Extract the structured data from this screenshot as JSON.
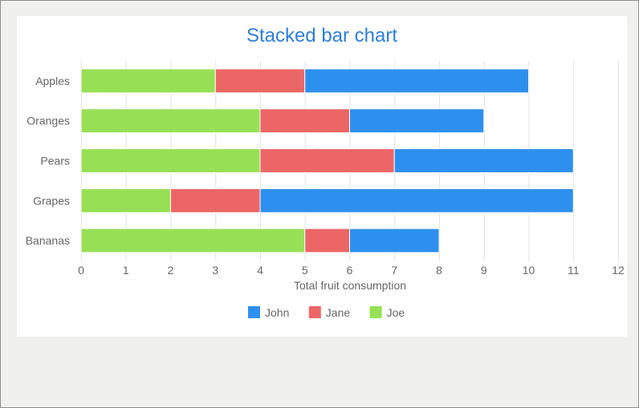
{
  "chart_data": {
    "type": "bar",
    "orientation": "horizontal",
    "stacked": true,
    "title": "Stacked bar chart",
    "xlabel": "Total fruit consumption",
    "ylabel": "",
    "xlim": [
      0,
      12
    ],
    "xticks": [
      0,
      1,
      2,
      3,
      4,
      5,
      6,
      7,
      8,
      9,
      10,
      11,
      12
    ],
    "categories": [
      "Apples",
      "Oranges",
      "Pears",
      "Grapes",
      "Bananas"
    ],
    "series": [
      {
        "name": "Joe",
        "color": "#96e055",
        "values": [
          3,
          4,
          4,
          2,
          5
        ]
      },
      {
        "name": "Jane",
        "color": "#ec6666",
        "values": [
          2,
          2,
          3,
          2,
          1
        ]
      },
      {
        "name": "John",
        "color": "#2e90ee",
        "values": [
          5,
          3,
          4,
          7,
          2
        ]
      }
    ],
    "legend_order": [
      "John",
      "Jane",
      "Joe"
    ],
    "legend_position": "bottom",
    "grid": true,
    "title_color": "#2f7ed8",
    "label_color": "#666666",
    "grid_color": "#e2e2e2"
  }
}
